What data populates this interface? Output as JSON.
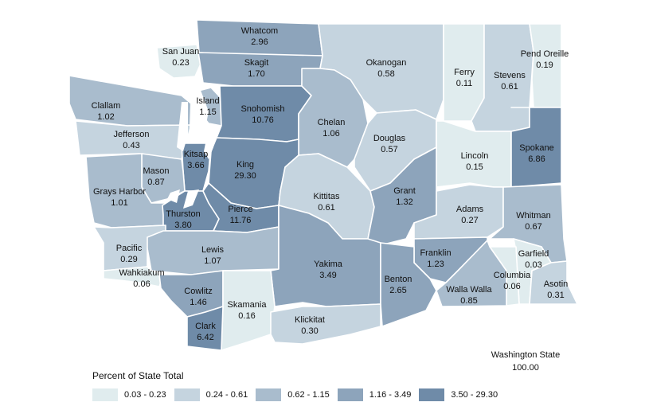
{
  "colors": {
    "c1": "#e0ecee",
    "c2": "#c5d4df",
    "c3": "#a9bccd",
    "c4": "#8da4bb",
    "c5": "#6f8ba8",
    "water": "#ffffff"
  },
  "counties": [
    {
      "name": "San Juan",
      "value": "0.23",
      "cls": "c1"
    },
    {
      "name": "Whatcom",
      "value": "2.96",
      "cls": "c4"
    },
    {
      "name": "Skagit",
      "value": "1.70",
      "cls": "c4"
    },
    {
      "name": "Okanogan",
      "value": "0.58",
      "cls": "c2"
    },
    {
      "name": "Ferry",
      "value": "0.11",
      "cls": "c1"
    },
    {
      "name": "Stevens",
      "value": "0.61",
      "cls": "c2"
    },
    {
      "name": "Pend Oreille",
      "value": "0.19",
      "cls": "c1"
    },
    {
      "name": "Island",
      "value": "1.15",
      "cls": "c3"
    },
    {
      "name": "Clallam",
      "value": "1.02",
      "cls": "c3"
    },
    {
      "name": "Snohomish",
      "value": "10.76",
      "cls": "c5"
    },
    {
      "name": "Chelan",
      "value": "1.06",
      "cls": "c3"
    },
    {
      "name": "Jefferson",
      "value": "0.43",
      "cls": "c2"
    },
    {
      "name": "Douglas",
      "value": "0.57",
      "cls": "c2"
    },
    {
      "name": "Kitsap",
      "value": "3.66",
      "cls": "c5"
    },
    {
      "name": "Lincoln",
      "value": "0.15",
      "cls": "c1"
    },
    {
      "name": "Spokane",
      "value": "6.86",
      "cls": "c5"
    },
    {
      "name": "Mason",
      "value": "0.87",
      "cls": "c3"
    },
    {
      "name": "King",
      "value": "29.30",
      "cls": "c5"
    },
    {
      "name": "Grays Harbor",
      "value": "1.01",
      "cls": "c3"
    },
    {
      "name": "Kittitas",
      "value": "0.61",
      "cls": "c2"
    },
    {
      "name": "Grant",
      "value": "1.32",
      "cls": "c4"
    },
    {
      "name": "Thurston",
      "value": "3.80",
      "cls": "c5"
    },
    {
      "name": "Pierce",
      "value": "11.76",
      "cls": "c5"
    },
    {
      "name": "Adams",
      "value": "0.27",
      "cls": "c2"
    },
    {
      "name": "Whitman",
      "value": "0.67",
      "cls": "c3"
    },
    {
      "name": "Pacific",
      "value": "0.29",
      "cls": "c2"
    },
    {
      "name": "Lewis",
      "value": "1.07",
      "cls": "c3"
    },
    {
      "name": "Yakima",
      "value": "3.49",
      "cls": "c4"
    },
    {
      "name": "Franklin",
      "value": "1.23",
      "cls": "c4"
    },
    {
      "name": "Garfield",
      "value": "0.03",
      "cls": "c1"
    },
    {
      "name": "Wahkiakum",
      "value": "0.06",
      "cls": "c1"
    },
    {
      "name": "Benton",
      "value": "2.65",
      "cls": "c4"
    },
    {
      "name": "Columbia",
      "value": "0.06",
      "cls": "c1"
    },
    {
      "name": "Cowlitz",
      "value": "1.46",
      "cls": "c4"
    },
    {
      "name": "Walla Walla",
      "value": "0.85",
      "cls": "c3"
    },
    {
      "name": "Asotin",
      "value": "0.31",
      "cls": "c2"
    },
    {
      "name": "Skamania",
      "value": "0.16",
      "cls": "c1"
    },
    {
      "name": "Clark",
      "value": "6.42",
      "cls": "c5"
    },
    {
      "name": "Klickitat",
      "value": "0.30",
      "cls": "c2"
    }
  ],
  "state": {
    "name": "Washington State",
    "value": "100.00"
  },
  "legend": {
    "title": "Percent of State Total",
    "items": [
      {
        "label": "0.03 - 0.23",
        "color": "#e0ecee"
      },
      {
        "label": "0.24 - 0.61",
        "color": "#c5d4df"
      },
      {
        "label": "0.62 - 1.15",
        "color": "#a9bccd"
      },
      {
        "label": "1.16 - 3.49",
        "color": "#8da4bb"
      },
      {
        "label": "3.50 - 29.30",
        "color": "#6f8ba8"
      }
    ]
  }
}
